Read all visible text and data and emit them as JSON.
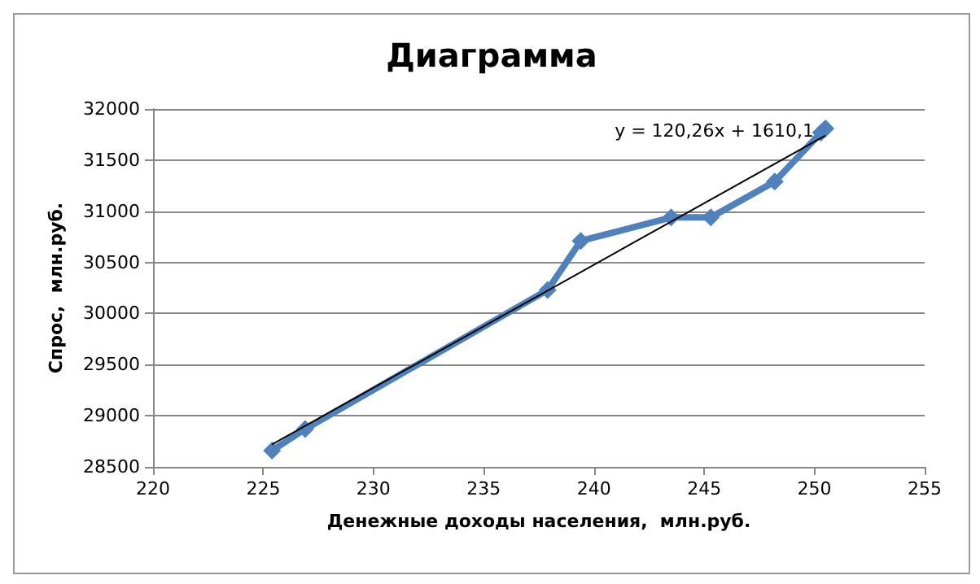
{
  "chart_data": {
    "type": "line",
    "title": "Диаграмма",
    "xlabel": "Денежные доходы населения,  млн.руб.",
    "ylabel": "Спрос,  млн.руб.",
    "x": [
      225.4,
      226.9,
      237.9,
      239.4,
      243.5,
      245.3,
      248.2,
      250.3,
      250.5
    ],
    "series": [
      {
        "color": "#4f81bd",
        "values": [
          28660,
          28870,
          30230,
          30710,
          30940,
          30940,
          31290,
          31770,
          31810
        ],
        "marker": "diamond"
      },
      {
        "type": "line",
        "color": "#000000",
        "x": [
          225.4,
          250.5
        ],
        "values": [
          28720,
          31740
        ],
        "marker": "none"
      }
    ],
    "xlim": [
      220,
      255
    ],
    "xticks": [
      220,
      225,
      230,
      235,
      240,
      245,
      250,
      255
    ],
    "ylim": [
      28500,
      32000
    ],
    "yticks": [
      28500,
      29000,
      29500,
      30000,
      30500,
      31000,
      31500,
      32000
    ],
    "grid": "y",
    "annotations": [
      "y = 120,26x + 1610,1"
    ]
  }
}
